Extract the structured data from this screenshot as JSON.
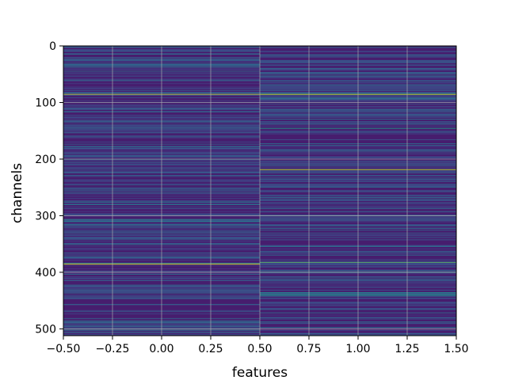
{
  "chart_data": {
    "type": "heatmap",
    "title": "",
    "xlabel": "features",
    "ylabel": "channels",
    "xlim": [
      -0.5,
      1.5
    ],
    "ylim": [
      512,
      0
    ],
    "grid": true,
    "colormap": "viridis",
    "x_ticks": [
      -0.5,
      -0.25,
      0.0,
      0.25,
      0.5,
      0.75,
      1.0,
      1.25,
      1.5
    ],
    "x_tick_labels": [
      "−0.50",
      "−0.25",
      "0.00",
      "0.25",
      "0.50",
      "0.75",
      "1.00",
      "1.25",
      "1.50"
    ],
    "y_ticks": [
      0,
      100,
      200,
      300,
      400,
      500
    ],
    "y_tick_labels": [
      "0",
      "100",
      "200",
      "300",
      "400",
      "500"
    ],
    "columns": [
      0,
      1
    ],
    "rows": 512,
    "base_level": 0.08,
    "highlights": [
      {
        "feature": 0,
        "channel": 85,
        "value": 0.95
      },
      {
        "feature": 0,
        "channel": 275,
        "value": 0.45
      },
      {
        "feature": 0,
        "channel": 280,
        "value": 0.4
      },
      {
        "feature": 0,
        "channel": 306,
        "value": 0.5
      },
      {
        "feature": 0,
        "channel": 309,
        "value": 0.45
      },
      {
        "feature": 0,
        "channel": 385,
        "value": 0.95
      },
      {
        "feature": 0,
        "channel": 500,
        "value": 0.4
      },
      {
        "feature": 0,
        "channel": 505,
        "value": 0.35
      },
      {
        "feature": 1,
        "channel": 85,
        "value": 0.9
      },
      {
        "feature": 1,
        "channel": 145,
        "value": 0.55
      },
      {
        "feature": 1,
        "channel": 172,
        "value": 0.35
      },
      {
        "feature": 1,
        "channel": 218,
        "value": 0.9
      },
      {
        "feature": 1,
        "channel": 300,
        "value": 0.3
      },
      {
        "feature": 1,
        "channel": 330,
        "value": 0.3
      },
      {
        "feature": 1,
        "channel": 382,
        "value": 0.75
      },
      {
        "feature": 1,
        "channel": 400,
        "value": 0.35
      },
      {
        "feature": 1,
        "channel": 435,
        "value": 0.5
      },
      {
        "feature": 1,
        "channel": 438,
        "value": 0.55
      },
      {
        "feature": 1,
        "channel": 441,
        "value": 0.5
      },
      {
        "feature": 1,
        "channel": 497,
        "value": 0.4
      }
    ]
  }
}
